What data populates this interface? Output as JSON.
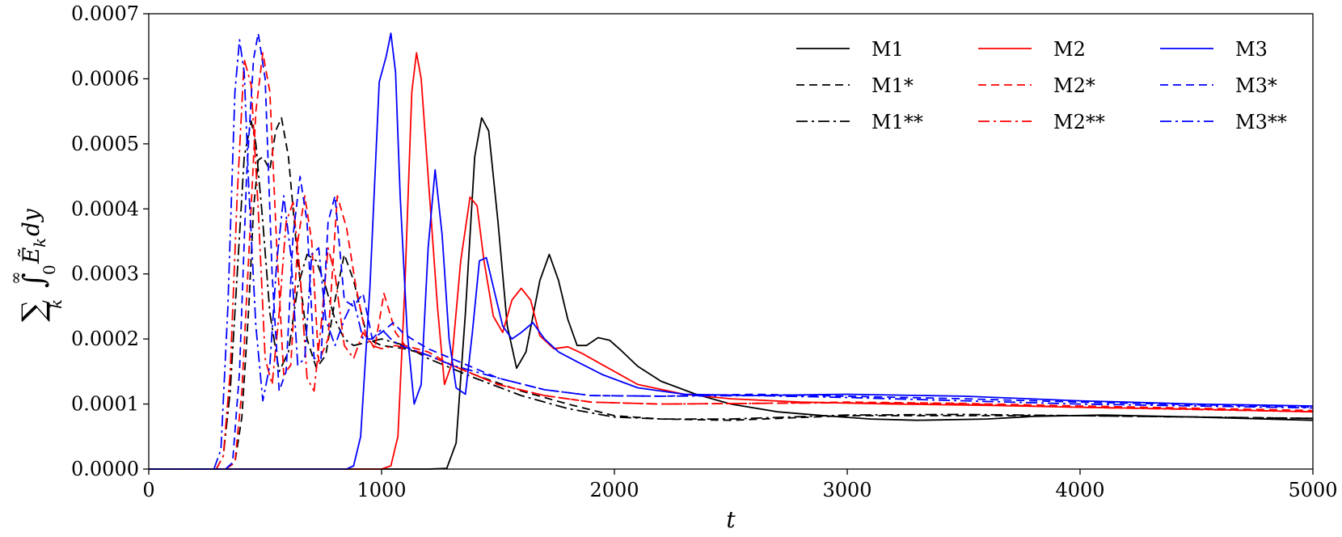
{
  "chart_data": {
    "type": "line",
    "title": "",
    "xlabel": "t",
    "ylabel": "Σ_k ∫_0^∞ Ẽ_k dy",
    "ylabel_parts": {
      "sum": "∑",
      "sum_sub": "k",
      "integral": "∫",
      "int_sup": "∞",
      "int_sub": "0",
      "E": "Ẽ",
      "E_sub": "k",
      "dy": "dy"
    },
    "xlim": [
      0,
      5000
    ],
    "ylim": [
      0,
      0.0007
    ],
    "xticks": [
      0,
      1000,
      2000,
      3000,
      4000,
      5000
    ],
    "xtick_labels": [
      "0",
      "1000",
      "2000",
      "3000",
      "4000",
      "5000"
    ],
    "yticks": [
      0,
      0.0001,
      0.0002,
      0.0003,
      0.0004,
      0.0005,
      0.0006,
      0.0007
    ],
    "ytick_labels": [
      "0.0000",
      "0.0001",
      "0.0002",
      "0.0003",
      "0.0004",
      "0.0005",
      "0.0006",
      "0.0007"
    ],
    "grid": false,
    "legend_position": "top-right",
    "legend_columns": 3,
    "series": [
      {
        "name": "M1",
        "color": "#000000",
        "dash": "solid",
        "x": [
          0,
          1200,
          1280,
          1320,
          1360,
          1400,
          1430,
          1460,
          1500,
          1540,
          1580,
          1620,
          1680,
          1720,
          1760,
          1800,
          1840,
          1880,
          1930,
          1980,
          2030,
          2100,
          2200,
          2350,
          2500,
          2700,
          2900,
          3100,
          3300,
          3600,
          3800,
          4100,
          4500,
          5000
        ],
        "y": [
          0,
          0,
          1e-06,
          4e-05,
          0.00024,
          0.00048,
          0.00054,
          0.00052,
          0.00038,
          0.00022,
          0.000155,
          0.00018,
          0.00029,
          0.00033,
          0.00029,
          0.00023,
          0.00019,
          0.00019,
          0.000202,
          0.000198,
          0.000182,
          0.000158,
          0.000135,
          0.000115,
          0.0001,
          8.8e-05,
          8.2e-05,
          7.7e-05,
          7.5e-05,
          7.7e-05,
          8.1e-05,
          8.3e-05,
          8e-05,
          7.5e-05
        ]
      },
      {
        "name": "M1*",
        "color": "#000000",
        "dash": "10,6",
        "x": [
          0,
          330,
          370,
          400,
          430,
          450,
          470,
          490,
          520,
          545,
          570,
          600,
          640,
          680,
          720,
          760,
          800,
          840,
          880,
          940,
          1000,
          1100,
          1200,
          1400,
          1600,
          1800,
          2000,
          2200,
          2500,
          3000,
          3500,
          4000,
          5000
        ],
        "y": [
          0,
          0,
          1e-05,
          8e-05,
          0.00025,
          0.0004,
          0.000475,
          0.00048,
          0.00046,
          0.00052,
          0.00054,
          0.00048,
          0.00032,
          0.0002,
          0.000155,
          0.000175,
          0.00026,
          0.00033,
          0.00029,
          0.0002,
          0.00019,
          0.000185,
          0.000175,
          0.000145,
          0.00012,
          0.0001,
          8.2e-05,
          7.7e-05,
          7.5e-05,
          8.2e-05,
          8.2e-05,
          8.2e-05,
          7.8e-05
        ]
      },
      {
        "name": "M1**",
        "color": "#000000",
        "dash": "14,5,3,5",
        "x": [
          0,
          290,
          320,
          350,
          380,
          410,
          440,
          460,
          490,
          520,
          560,
          600,
          640,
          680,
          720,
          760,
          800,
          840,
          880,
          940,
          1000,
          1100,
          1200,
          1400,
          1600,
          1800,
          2000,
          2200,
          2500,
          3000,
          3500,
          4000,
          5000
        ],
        "y": [
          0,
          0,
          2e-05,
          0.00012,
          0.0003,
          0.00048,
          0.000535,
          0.0005,
          0.00038,
          0.00024,
          0.00015,
          0.00018,
          0.00028,
          0.00033,
          0.00032,
          0.00028,
          0.00023,
          0.0002,
          0.00019,
          0.000195,
          0.0002,
          0.00019,
          0.00017,
          0.00014,
          0.000113,
          9.3e-05,
          8e-05,
          7.7e-05,
          7.7e-05,
          8.3e-05,
          8.4e-05,
          8.2e-05,
          7.8e-05
        ]
      },
      {
        "name": "M2",
        "color": "#ff0000",
        "dash": "solid",
        "x": [
          0,
          1000,
          1040,
          1070,
          1100,
          1130,
          1150,
          1170,
          1200,
          1240,
          1270,
          1300,
          1340,
          1380,
          1410,
          1440,
          1480,
          1520,
          1560,
          1600,
          1640,
          1680,
          1740,
          1800,
          1860,
          1950,
          2100,
          2300,
          2500,
          2800,
          3200,
          3600,
          4000,
          4500,
          5000
        ],
        "y": [
          0,
          0,
          5e-06,
          5e-05,
          0.00028,
          0.00058,
          0.00064,
          0.0006,
          0.00045,
          0.00025,
          0.00013,
          0.00016,
          0.00032,
          0.000418,
          0.000405,
          0.00032,
          0.000235,
          0.00021,
          0.00026,
          0.000278,
          0.00026,
          0.000205,
          0.000185,
          0.000188,
          0.000178,
          0.00016,
          0.00013,
          0.000115,
          0.000108,
          0.000103,
          0.0001,
          9.8e-05,
          9.5e-05,
          9.2e-05,
          8.8e-05
        ]
      },
      {
        "name": "M2*",
        "color": "#ff0000",
        "dash": "10,6",
        "x": [
          0,
          330,
          370,
          400,
          430,
          460,
          490,
          520,
          550,
          580,
          610,
          640,
          670,
          700,
          730,
          770,
          810,
          850,
          890,
          930,
          970,
          1010,
          1060,
          1100,
          1200,
          1300,
          1500,
          1700,
          1900,
          2200,
          2600,
          3000,
          3500,
          4000,
          5000
        ],
        "y": [
          0,
          0,
          1e-05,
          0.00012,
          0.00033,
          0.00055,
          0.00064,
          0.00058,
          0.00034,
          0.000145,
          0.00016,
          0.00035,
          0.00042,
          0.00035,
          0.000165,
          0.0002,
          0.00042,
          0.00037,
          0.00028,
          0.00021,
          0.000185,
          0.00027,
          0.00021,
          0.00019,
          0.00018,
          0.00016,
          0.00013,
          0.000113,
          0.000103,
          0.0001,
          0.000101,
          0.000103,
          0.000101,
          9.7e-05,
          9e-05
        ]
      },
      {
        "name": "M2**",
        "color": "#ff0000",
        "dash": "14,5,3,5",
        "x": [
          0,
          290,
          320,
          350,
          380,
          410,
          440,
          470,
          500,
          530,
          560,
          590,
          620,
          650,
          680,
          710,
          740,
          770,
          800,
          840,
          880,
          920,
          960,
          1000,
          1060,
          1120,
          1200,
          1300,
          1500,
          1700,
          1900,
          2200,
          2600,
          3000,
          3500,
          4000,
          5000
        ],
        "y": [
          0,
          0,
          2e-05,
          0.00015,
          0.00042,
          0.00063,
          0.00059,
          0.0004,
          0.00017,
          0.00013,
          0.00024,
          0.00038,
          0.00041,
          0.0003,
          0.00014,
          0.00012,
          0.00022,
          0.00034,
          0.0003,
          0.00019,
          0.00017,
          0.00021,
          0.00019,
          0.000185,
          0.00019,
          0.000185,
          0.000175,
          0.00016,
          0.00013,
          0.000113,
          0.000103,
          0.0001,
          0.000101,
          0.000102,
          0.0001,
          9.5e-05,
          8.8e-05
        ]
      },
      {
        "name": "M3",
        "color": "#0000ff",
        "dash": "solid",
        "x": [
          0,
          850,
          880,
          910,
          950,
          990,
          1020,
          1040,
          1060,
          1080,
          1110,
          1140,
          1170,
          1200,
          1230,
          1260,
          1290,
          1320,
          1360,
          1390,
          1420,
          1450,
          1480,
          1520,
          1560,
          1600,
          1650,
          1700,
          1760,
          1840,
          1950,
          2100,
          2300,
          2600,
          3000,
          3500,
          4000,
          4500,
          5000
        ],
        "y": [
          0,
          0,
          5e-06,
          5e-05,
          0.00028,
          0.000595,
          0.000635,
          0.00067,
          0.00061,
          0.00042,
          0.00021,
          0.0001,
          0.00013,
          0.00034,
          0.00046,
          0.00036,
          0.0002,
          0.000125,
          0.000115,
          0.00021,
          0.00032,
          0.000325,
          0.00028,
          0.00022,
          0.0002,
          0.00021,
          0.000225,
          0.0002,
          0.00018,
          0.000165,
          0.000145,
          0.000125,
          0.000115,
          0.000113,
          0.000115,
          0.000112,
          0.000105,
          0.0001,
          9.7e-05
        ]
      },
      {
        "name": "M3*",
        "color": "#0000ff",
        "dash": "10,6",
        "x": [
          0,
          330,
          360,
          390,
          420,
          450,
          470,
          500,
          530,
          560,
          590,
          620,
          650,
          680,
          710,
          740,
          770,
          800,
          840,
          880,
          920,
          960,
          1000,
          1050,
          1090,
          1130,
          1200,
          1300,
          1500,
          1700,
          1900,
          2200,
          2600,
          3000,
          3500,
          4000,
          5000
        ],
        "y": [
          0,
          0,
          1e-05,
          0.00015,
          0.00045,
          0.00063,
          0.00067,
          0.0006,
          0.0003,
          0.00012,
          0.00015,
          0.00036,
          0.00045,
          0.00038,
          0.00017,
          0.00017,
          0.00038,
          0.00042,
          0.00026,
          0.00025,
          0.00027,
          0.0002,
          0.00021,
          0.000225,
          0.00021,
          0.0002,
          0.000185,
          0.00017,
          0.00014,
          0.000122,
          0.000113,
          0.000112,
          0.000115,
          0.000112,
          0.000108,
          0.000103,
          9.5e-05
        ]
      },
      {
        "name": "M3**",
        "color": "#0000ff",
        "dash": "14,5,3,5",
        "x": [
          0,
          280,
          310,
          340,
          370,
          390,
          410,
          430,
          460,
          490,
          520,
          550,
          580,
          610,
          640,
          670,
          700,
          730,
          760,
          800,
          840,
          880,
          920,
          960,
          1000,
          1040,
          1080,
          1120,
          1200,
          1300,
          1500,
          1700,
          1900,
          2200,
          2600,
          3000,
          3500,
          4000,
          5000
        ],
        "y": [
          0,
          0,
          3e-05,
          0.00025,
          0.00058,
          0.00066,
          0.00061,
          0.00043,
          0.00022,
          0.000105,
          0.00016,
          0.00032,
          0.00042,
          0.00033,
          0.00016,
          0.00017,
          0.00033,
          0.00034,
          0.00023,
          0.00019,
          0.00023,
          0.00026,
          0.0002,
          0.0002,
          0.000215,
          0.0002,
          0.00019,
          0.000185,
          0.000175,
          0.00016,
          0.00014,
          0.000122,
          0.000113,
          0.000112,
          0.000113,
          0.00011,
          0.000105,
          0.0001,
          9.4e-05
        ]
      }
    ]
  }
}
